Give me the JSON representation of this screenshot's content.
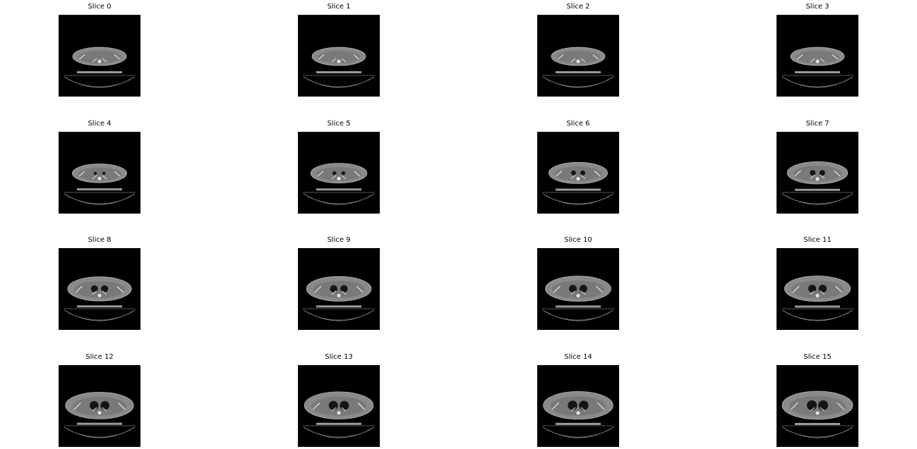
{
  "figure": {
    "background": "#ffffff",
    "image_background": "#000000",
    "tissue_color": "#8a8a8a",
    "bone_color": "#e6e6e6",
    "lung_color": "#151515"
  },
  "slices": [
    {
      "title": "Slice 0",
      "lungs": 0.0
    },
    {
      "title": "Slice 1",
      "lungs": 0.0
    },
    {
      "title": "Slice 2",
      "lungs": 0.0
    },
    {
      "title": "Slice 3",
      "lungs": 0.0
    },
    {
      "title": "Slice 4",
      "lungs": 0.05
    },
    {
      "title": "Slice 5",
      "lungs": 0.15
    },
    {
      "title": "Slice 6",
      "lungs": 0.3
    },
    {
      "title": "Slice 7",
      "lungs": 0.4
    },
    {
      "title": "Slice 8",
      "lungs": 0.6
    },
    {
      "title": "Slice 9",
      "lungs": 0.65
    },
    {
      "title": "Slice 10",
      "lungs": 0.7
    },
    {
      "title": "Slice 11",
      "lungs": 0.72
    },
    {
      "title": "Slice 12",
      "lungs": 0.85
    },
    {
      "title": "Slice 13",
      "lungs": 0.9
    },
    {
      "title": "Slice 14",
      "lungs": 0.95
    },
    {
      "title": "Slice 15",
      "lungs": 1.0
    }
  ]
}
